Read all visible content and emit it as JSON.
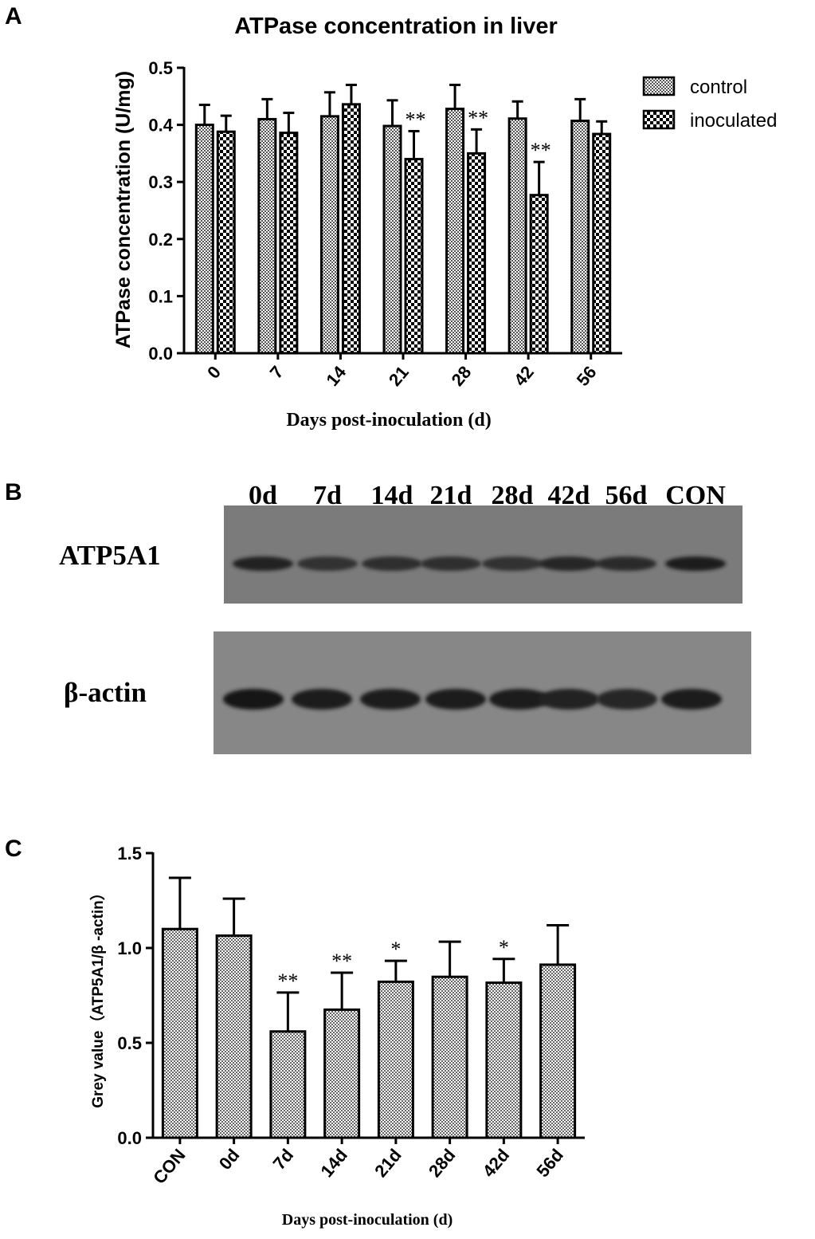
{
  "panels": {
    "a": {
      "letter": "A",
      "chart_data": {
        "type": "bar",
        "title": "ATPase concentration in liver",
        "xlabel": "Days post-inoculation (d)",
        "ylabel": "ATPase concentration (U/mg)",
        "categories": [
          "0",
          "7",
          "14",
          "21",
          "28",
          "42",
          "56"
        ],
        "ylim": [
          0,
          0.5
        ],
        "yticks": [
          "0.0",
          "0.1",
          "0.2",
          "0.3",
          "0.4",
          "0.5"
        ],
        "legend_position": "top-right",
        "series": [
          {
            "name": "control",
            "values": [
              0.4,
              0.41,
              0.415,
              0.398,
              0.428,
              0.411,
              0.407
            ],
            "errors": [
              0.035,
              0.035,
              0.042,
              0.045,
              0.042,
              0.03,
              0.038
            ],
            "pattern": "fine-checker"
          },
          {
            "name": "inoculated",
            "values": [
              0.388,
              0.386,
              0.436,
              0.34,
              0.35,
              0.277,
              0.384
            ],
            "errors": [
              0.028,
              0.035,
              0.034,
              0.049,
              0.042,
              0.058,
              0.022
            ],
            "pattern": "coarse-checker"
          }
        ],
        "annotations": [
          {
            "category": "21",
            "series": "inoculated",
            "text": "**"
          },
          {
            "category": "28",
            "series": "inoculated",
            "text": "**"
          },
          {
            "category": "42",
            "series": "inoculated",
            "text": "**"
          }
        ]
      }
    },
    "b": {
      "letter": "B",
      "lane_labels": [
        "0d",
        "7d",
        "14d",
        "21d",
        "28d",
        "42d",
        "56d",
        "CON"
      ],
      "blots": [
        {
          "label": "ATP5A1",
          "band_intensity": [
            0.8,
            0.62,
            0.66,
            0.64,
            0.6,
            0.74,
            0.72,
            0.88
          ]
        },
        {
          "label": "β-actin",
          "band_intensity": [
            0.95,
            0.92,
            0.9,
            0.88,
            0.85,
            0.8,
            0.78,
            0.9
          ]
        }
      ]
    },
    "c": {
      "letter": "C",
      "chart_data": {
        "type": "bar",
        "xlabel": "Days post-inoculation (d)",
        "ylabel": "Grey value（ATP5A1/β -actin）",
        "categories": [
          "CON",
          "0d",
          "7d",
          "14d",
          "21d",
          "28d",
          "42d",
          "56d"
        ],
        "ylim": [
          0,
          1.5
        ],
        "yticks": [
          "0.0",
          "0.5",
          "1.0",
          "1.5"
        ],
        "values": [
          1.1,
          1.065,
          0.56,
          0.675,
          0.822,
          0.848,
          0.817,
          0.912
        ],
        "errors": [
          0.27,
          0.195,
          0.205,
          0.195,
          0.11,
          0.185,
          0.125,
          0.208
        ],
        "annotations": [
          "",
          "",
          "**",
          "**",
          "*",
          "",
          "*",
          ""
        ]
      }
    }
  }
}
